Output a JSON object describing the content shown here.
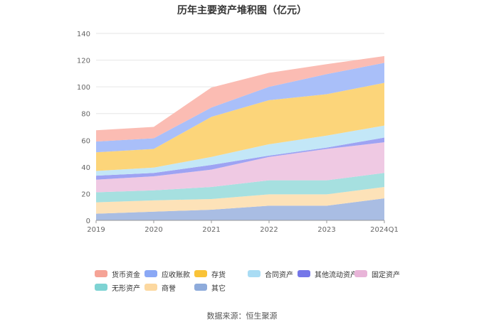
{
  "chart_data": {
    "type": "area",
    "stacked": true,
    "title": "历年主要资产堆积图（亿元）",
    "xlabel": "",
    "ylabel": "",
    "ylim": [
      0,
      140
    ],
    "yticks": [
      0,
      20,
      40,
      60,
      80,
      100,
      120,
      140
    ],
    "grid": true,
    "legend_position": "bottom",
    "categories": [
      "2019",
      "2020",
      "2021",
      "2022",
      "2023",
      "2024Q1"
    ],
    "series": [
      {
        "name": "其它",
        "color": "#a9bde3",
        "values": [
          5,
          6.5,
          8,
          11,
          11,
          16.5
        ]
      },
      {
        "name": "商誉",
        "color": "#fde2b8",
        "values": [
          8.5,
          8.5,
          8,
          8.5,
          8.5,
          8.5
        ]
      },
      {
        "name": "无形资产",
        "color": "#a6e0e0",
        "values": [
          7.5,
          7.5,
          9,
          10.5,
          10.5,
          10.5
        ]
      },
      {
        "name": "固定资产",
        "color": "#efc9e3",
        "values": [
          9.5,
          10.5,
          13,
          17.5,
          23.5,
          23
        ]
      },
      {
        "name": "其他流动资产",
        "color": "#9ea3f3",
        "values": [
          3,
          2.5,
          3.5,
          1,
          1,
          3.5
        ]
      },
      {
        "name": "合同资产",
        "color": "#c3e7f7",
        "values": [
          3.5,
          4,
          6,
          8.5,
          9,
          9
        ]
      },
      {
        "name": "存货",
        "color": "#fcd57a",
        "values": [
          14,
          14,
          30,
          33,
          31,
          32
        ]
      },
      {
        "name": "应收账款",
        "color": "#a9bff9",
        "values": [
          8,
          8,
          7,
          10,
          15,
          15
        ]
      },
      {
        "name": "货币资金",
        "color": "#fbbcb3",
        "values": [
          8.5,
          8.5,
          15,
          10.5,
          7.5,
          5
        ]
      }
    ],
    "legend_colors": {
      "货币资金": "#f5a396",
      "应收账款": "#8aa8f5",
      "存货": "#f9c338",
      "合同资产": "#a9dcf4",
      "其他流动资产": "#7476e8",
      "固定资产": "#e8b4d8",
      "无形资产": "#7ed3d3",
      "商誉": "#fcd8a0",
      "其它": "#8eabdb"
    }
  },
  "legend": {
    "items": [
      "货币资金",
      "应收账款",
      "存货",
      "合同资产",
      "其他流动资产",
      "固定资产",
      "无形资产",
      "商誉",
      "其它"
    ]
  },
  "source": "数据来源：恒生聚源"
}
